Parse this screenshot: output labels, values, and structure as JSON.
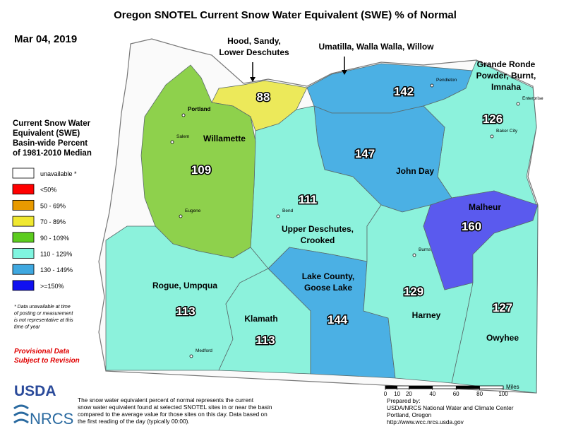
{
  "title": "Oregon SNOTEL Current Snow Water Equivalent (SWE) % of Normal",
  "date": "Mar 04, 2019",
  "legend": {
    "title": [
      "Current Snow Water",
      "Equivalent (SWE)",
      "Basin-wide Percent",
      "of 1981-2010 Median"
    ],
    "items": [
      {
        "label": "unavailable *",
        "color": "#ffffff"
      },
      {
        "label": "<50%",
        "color": "#ff0000"
      },
      {
        "label": "50 - 69%",
        "color": "#e89a00"
      },
      {
        "label": "70 - 89%",
        "color": "#f0e830"
      },
      {
        "label": "90 - 109%",
        "color": "#5ccc1e"
      },
      {
        "label": "110 - 129%",
        "color": "#80f5e0"
      },
      {
        "label": "130 - 149%",
        "color": "#3fa8e0"
      },
      {
        "label": ">=150%",
        "color": "#1010f0"
      }
    ]
  },
  "footnote": [
    "*  Data unavailable at time",
    "of posting or measurement",
    "is not representative at this",
    "time of year"
  ],
  "provisional": [
    "Provisional Data",
    "Subject to Revision"
  ],
  "basins": [
    {
      "name": [
        "Hood, Sandy,",
        "Lower Deschutes"
      ],
      "value": 88,
      "color": "#ece95a"
    },
    {
      "name": [
        "Umatilla, Walla Walla, Willow"
      ],
      "value": 142,
      "color": "#4bb0e4"
    },
    {
      "name": [
        "Grande Ronde",
        "Powder, Burnt,",
        "Imnaha"
      ],
      "value": 126,
      "color": "#8cf2dc"
    },
    {
      "name": [
        "John Day"
      ],
      "value": 147,
      "color": "#4bb0e4"
    },
    {
      "name": [
        "Upper Deschutes,",
        "Crooked"
      ],
      "value": 111,
      "color": "#8cf2dc"
    },
    {
      "name": [
        "Willamette"
      ],
      "value": 109,
      "color": "#8ed14c"
    },
    {
      "name": [
        "Rogue, Umpqua"
      ],
      "value": 113,
      "color": "#8cf2dc"
    },
    {
      "name": [
        "Klamath"
      ],
      "value": 113,
      "color": "#8cf2dc"
    },
    {
      "name": [
        "Lake County,",
        "Goose Lake"
      ],
      "value": 144,
      "color": "#4bb0e4"
    },
    {
      "name": [
        "Harney"
      ],
      "value": 129,
      "color": "#8cf2dc"
    },
    {
      "name": [
        "Malheur"
      ],
      "value": 160,
      "color": "#5a5aee"
    },
    {
      "name": [
        "Owyhee"
      ],
      "value": 127,
      "color": "#8cf2dc"
    }
  ],
  "cities": [
    "Portland",
    "Salem",
    "Eugene",
    "Bend",
    "Medford",
    "Burns",
    "Pendleton",
    "Enterprise",
    "Baker City"
  ],
  "scale": {
    "label": "Miles",
    "ticks": [
      0,
      10,
      20,
      40,
      60,
      80,
      100
    ]
  },
  "description": [
    "The snow water equivalent percent of normal represents the current",
    "snow water equivalent found at selected SNOTEL sites in or near the basin",
    "compared to the average value for those sites on this day. Data based on",
    "the first reading of the day (typically 00:00)."
  ],
  "prepared": [
    "Prepared by:",
    "USDA/NRCS National Water and Climate Center",
    "Portland, Oregon",
    "http://www.wcc.nrcs.usda.gov"
  ],
  "logos": [
    "USDA",
    "NRCS"
  ]
}
